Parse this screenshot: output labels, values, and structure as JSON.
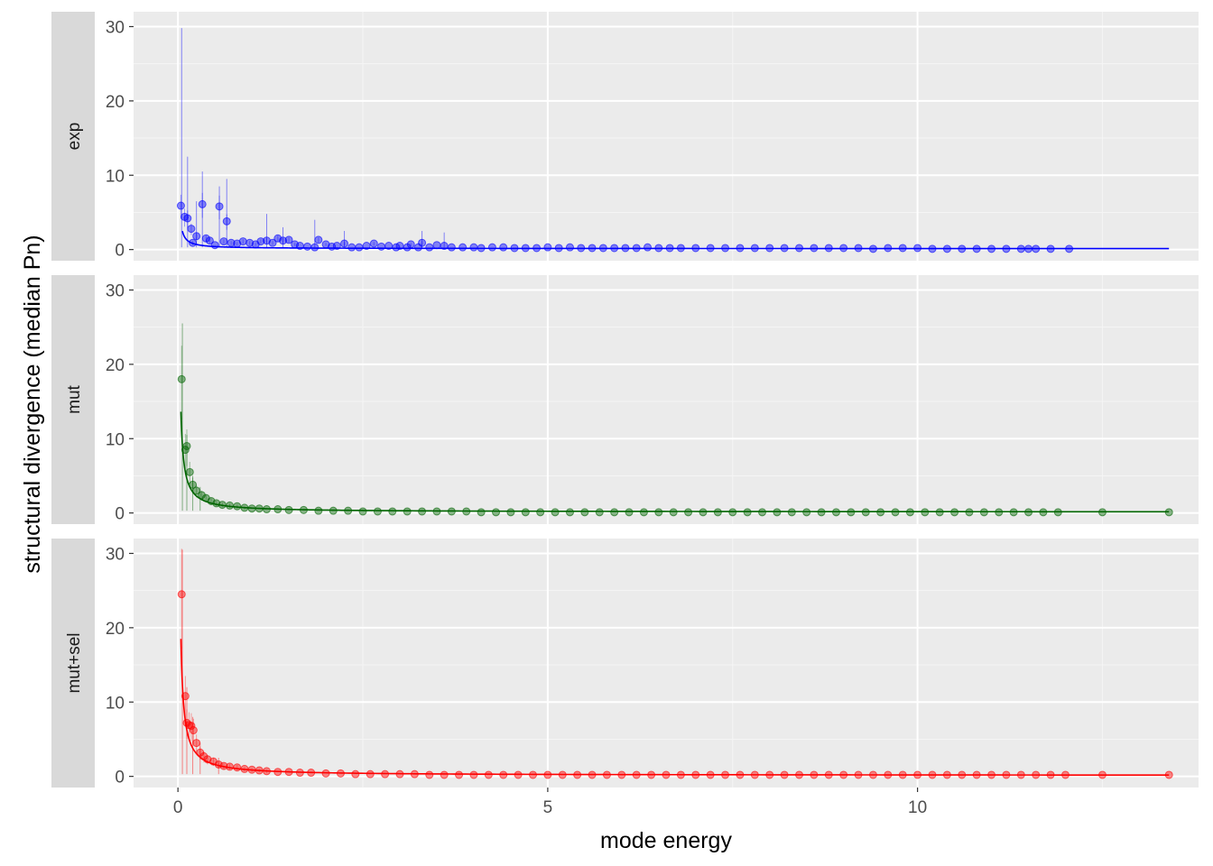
{
  "chart_data": {
    "type": "scatter",
    "xlabel": "mode energy",
    "ylabel": "structural divergence (median Pn)",
    "xlim": [
      -0.6,
      13.8
    ],
    "ylim": [
      -1.5,
      32
    ],
    "x_ticks": [
      0,
      5,
      10
    ],
    "y_ticks": [
      0,
      10,
      20,
      30
    ],
    "grid": true,
    "background": "#ebebeb",
    "strip_background": "#d9d9d9",
    "panels": [
      {
        "name": "exp",
        "color": "#0000ff",
        "points": [
          [
            0.04,
            5.9
          ],
          [
            0.09,
            4.4
          ],
          [
            0.13,
            4.2
          ],
          [
            0.18,
            2.8
          ],
          [
            0.2,
            0.9
          ],
          [
            0.25,
            1.8
          ],
          [
            0.33,
            6.1
          ],
          [
            0.38,
            1.5
          ],
          [
            0.43,
            1.2
          ],
          [
            0.5,
            0.6
          ],
          [
            0.56,
            5.8
          ],
          [
            0.62,
            1.1
          ],
          [
            0.66,
            3.8
          ],
          [
            0.72,
            0.9
          ],
          [
            0.8,
            0.8
          ],
          [
            0.88,
            1.1
          ],
          [
            0.97,
            0.9
          ],
          [
            1.05,
            0.7
          ],
          [
            1.12,
            1.1
          ],
          [
            1.2,
            1.2
          ],
          [
            1.28,
            0.9
          ],
          [
            1.35,
            1.5
          ],
          [
            1.42,
            1.2
          ],
          [
            1.5,
            1.3
          ],
          [
            1.58,
            0.7
          ],
          [
            1.65,
            0.5
          ],
          [
            1.75,
            0.4
          ],
          [
            1.85,
            0.3
          ],
          [
            1.9,
            1.3
          ],
          [
            2.0,
            0.7
          ],
          [
            2.08,
            0.4
          ],
          [
            2.15,
            0.5
          ],
          [
            2.25,
            0.8
          ],
          [
            2.35,
            0.3
          ],
          [
            2.45,
            0.3
          ],
          [
            2.55,
            0.5
          ],
          [
            2.65,
            0.8
          ],
          [
            2.75,
            0.4
          ],
          [
            2.85,
            0.5
          ],
          [
            2.95,
            0.3
          ],
          [
            3.0,
            0.5
          ],
          [
            3.1,
            0.3
          ],
          [
            3.15,
            0.7
          ],
          [
            3.25,
            0.3
          ],
          [
            3.3,
            0.9
          ],
          [
            3.4,
            0.3
          ],
          [
            3.5,
            0.6
          ],
          [
            3.6,
            0.5
          ],
          [
            3.7,
            0.3
          ],
          [
            3.85,
            0.3
          ],
          [
            4.0,
            0.3
          ],
          [
            4.1,
            0.2
          ],
          [
            4.25,
            0.3
          ],
          [
            4.4,
            0.3
          ],
          [
            4.55,
            0.2
          ],
          [
            4.7,
            0.2
          ],
          [
            4.85,
            0.2
          ],
          [
            5.0,
            0.3
          ],
          [
            5.15,
            0.2
          ],
          [
            5.3,
            0.3
          ],
          [
            5.45,
            0.2
          ],
          [
            5.6,
            0.2
          ],
          [
            5.75,
            0.2
          ],
          [
            5.9,
            0.2
          ],
          [
            6.05,
            0.2
          ],
          [
            6.2,
            0.2
          ],
          [
            6.35,
            0.3
          ],
          [
            6.5,
            0.2
          ],
          [
            6.65,
            0.2
          ],
          [
            6.8,
            0.2
          ],
          [
            7.0,
            0.2
          ],
          [
            7.2,
            0.2
          ],
          [
            7.4,
            0.2
          ],
          [
            7.6,
            0.2
          ],
          [
            7.8,
            0.2
          ],
          [
            8.0,
            0.2
          ],
          [
            8.2,
            0.2
          ],
          [
            8.4,
            0.2
          ],
          [
            8.6,
            0.2
          ],
          [
            8.8,
            0.2
          ],
          [
            9.0,
            0.2
          ],
          [
            9.2,
            0.2
          ],
          [
            9.4,
            0.1
          ],
          [
            9.6,
            0.2
          ],
          [
            9.8,
            0.2
          ],
          [
            10.0,
            0.2
          ],
          [
            10.2,
            0.1
          ],
          [
            10.4,
            0.1
          ],
          [
            10.6,
            0.1
          ],
          [
            10.8,
            0.1
          ],
          [
            11.0,
            0.1
          ],
          [
            11.2,
            0.1
          ],
          [
            11.4,
            0.1
          ],
          [
            11.5,
            0.1
          ],
          [
            11.6,
            0.1
          ],
          [
            11.8,
            0.1
          ],
          [
            12.05,
            0.1
          ]
        ],
        "error_upper": [
          [
            0.05,
            29.8
          ],
          [
            0.13,
            12.5
          ],
          [
            0.25,
            6.5
          ],
          [
            0.33,
            10.5
          ],
          [
            0.56,
            8.5
          ],
          [
            0.66,
            9.5
          ],
          [
            1.2,
            4.8
          ],
          [
            1.42,
            3.0
          ],
          [
            1.85,
            4.0
          ],
          [
            2.25,
            2.5
          ],
          [
            3.3,
            2.5
          ],
          [
            3.6,
            2.3
          ]
        ],
        "fit_curve": true,
        "fit_range": [
          0.06,
          13.4
        ]
      },
      {
        "name": "mut",
        "color": "#006400",
        "points": [
          [
            0.05,
            18.0
          ],
          [
            0.1,
            8.5
          ],
          [
            0.12,
            9.0
          ],
          [
            0.16,
            5.5
          ],
          [
            0.2,
            3.8
          ],
          [
            0.25,
            3.0
          ],
          [
            0.32,
            2.4
          ],
          [
            0.38,
            2.0
          ],
          [
            0.45,
            1.6
          ],
          [
            0.52,
            1.3
          ],
          [
            0.6,
            1.1
          ],
          [
            0.7,
            1.0
          ],
          [
            0.8,
            0.9
          ],
          [
            0.9,
            0.7
          ],
          [
            1.0,
            0.6
          ],
          [
            1.1,
            0.6
          ],
          [
            1.2,
            0.5
          ],
          [
            1.35,
            0.5
          ],
          [
            1.5,
            0.4
          ],
          [
            1.7,
            0.4
          ],
          [
            1.9,
            0.3
          ],
          [
            2.1,
            0.3
          ],
          [
            2.3,
            0.3
          ],
          [
            2.5,
            0.2
          ],
          [
            2.7,
            0.2
          ],
          [
            2.9,
            0.2
          ],
          [
            3.1,
            0.2
          ],
          [
            3.3,
            0.2
          ],
          [
            3.5,
            0.2
          ],
          [
            3.7,
            0.2
          ],
          [
            3.9,
            0.2
          ],
          [
            4.1,
            0.1
          ],
          [
            4.3,
            0.1
          ],
          [
            4.5,
            0.1
          ],
          [
            4.7,
            0.1
          ],
          [
            4.9,
            0.1
          ],
          [
            5.1,
            0.1
          ],
          [
            5.3,
            0.1
          ],
          [
            5.5,
            0.1
          ],
          [
            5.7,
            0.1
          ],
          [
            5.9,
            0.1
          ],
          [
            6.1,
            0.1
          ],
          [
            6.3,
            0.1
          ],
          [
            6.5,
            0.1
          ],
          [
            6.7,
            0.1
          ],
          [
            6.9,
            0.1
          ],
          [
            7.1,
            0.1
          ],
          [
            7.3,
            0.1
          ],
          [
            7.5,
            0.1
          ],
          [
            7.7,
            0.1
          ],
          [
            7.9,
            0.1
          ],
          [
            8.1,
            0.1
          ],
          [
            8.3,
            0.1
          ],
          [
            8.5,
            0.1
          ],
          [
            8.7,
            0.1
          ],
          [
            8.9,
            0.1
          ],
          [
            9.1,
            0.1
          ],
          [
            9.3,
            0.1
          ],
          [
            9.5,
            0.1
          ],
          [
            9.7,
            0.1
          ],
          [
            9.9,
            0.1
          ],
          [
            10.1,
            0.1
          ],
          [
            10.3,
            0.1
          ],
          [
            10.5,
            0.1
          ],
          [
            10.7,
            0.1
          ],
          [
            10.9,
            0.1
          ],
          [
            11.1,
            0.1
          ],
          [
            11.3,
            0.1
          ],
          [
            11.5,
            0.1
          ],
          [
            11.7,
            0.1
          ],
          [
            11.9,
            0.1
          ],
          [
            12.5,
            0.1
          ],
          [
            13.4,
            0.1
          ]
        ],
        "error_upper": [
          [
            0.06,
            25.5
          ],
          [
            0.12,
            10.5
          ],
          [
            0.2,
            5.0
          ],
          [
            0.3,
            3.5
          ]
        ],
        "fit_curve": true,
        "fit_range": [
          0.04,
          13.4
        ]
      },
      {
        "name": "mut+sel",
        "color": "#ff0000",
        "points": [
          [
            0.05,
            24.5
          ],
          [
            0.1,
            10.8
          ],
          [
            0.12,
            7.2
          ],
          [
            0.15,
            6.9
          ],
          [
            0.18,
            6.8
          ],
          [
            0.21,
            6.2
          ],
          [
            0.25,
            4.5
          ],
          [
            0.3,
            3.2
          ],
          [
            0.35,
            2.7
          ],
          [
            0.4,
            2.3
          ],
          [
            0.48,
            2.0
          ],
          [
            0.55,
            1.6
          ],
          [
            0.62,
            1.4
          ],
          [
            0.7,
            1.3
          ],
          [
            0.8,
            1.2
          ],
          [
            0.9,
            1.0
          ],
          [
            1.0,
            0.9
          ],
          [
            1.1,
            0.8
          ],
          [
            1.2,
            0.7
          ],
          [
            1.35,
            0.6
          ],
          [
            1.5,
            0.6
          ],
          [
            1.65,
            0.5
          ],
          [
            1.8,
            0.5
          ],
          [
            2.0,
            0.4
          ],
          [
            2.2,
            0.4
          ],
          [
            2.4,
            0.3
          ],
          [
            2.6,
            0.3
          ],
          [
            2.8,
            0.3
          ],
          [
            3.0,
            0.3
          ],
          [
            3.2,
            0.3
          ],
          [
            3.4,
            0.2
          ],
          [
            3.6,
            0.2
          ],
          [
            3.8,
            0.2
          ],
          [
            4.0,
            0.2
          ],
          [
            4.2,
            0.2
          ],
          [
            4.4,
            0.2
          ],
          [
            4.6,
            0.2
          ],
          [
            4.8,
            0.2
          ],
          [
            5.0,
            0.2
          ],
          [
            5.2,
            0.2
          ],
          [
            5.4,
            0.2
          ],
          [
            5.6,
            0.2
          ],
          [
            5.8,
            0.2
          ],
          [
            6.0,
            0.2
          ],
          [
            6.2,
            0.2
          ],
          [
            6.4,
            0.2
          ],
          [
            6.6,
            0.2
          ],
          [
            6.8,
            0.2
          ],
          [
            7.0,
            0.2
          ],
          [
            7.2,
            0.2
          ],
          [
            7.4,
            0.2
          ],
          [
            7.6,
            0.2
          ],
          [
            7.8,
            0.2
          ],
          [
            8.0,
            0.2
          ],
          [
            8.2,
            0.2
          ],
          [
            8.4,
            0.2
          ],
          [
            8.6,
            0.2
          ],
          [
            8.8,
            0.2
          ],
          [
            9.0,
            0.2
          ],
          [
            9.2,
            0.2
          ],
          [
            9.4,
            0.2
          ],
          [
            9.6,
            0.2
          ],
          [
            9.8,
            0.2
          ],
          [
            10.0,
            0.2
          ],
          [
            10.2,
            0.2
          ],
          [
            10.4,
            0.2
          ],
          [
            10.6,
            0.2
          ],
          [
            10.8,
            0.2
          ],
          [
            11.0,
            0.2
          ],
          [
            11.2,
            0.2
          ],
          [
            11.4,
            0.2
          ],
          [
            11.6,
            0.2
          ],
          [
            11.8,
            0.2
          ],
          [
            12.0,
            0.2
          ],
          [
            12.5,
            0.2
          ],
          [
            13.4,
            0.2
          ]
        ],
        "error_upper": [
          [
            0.06,
            30.5
          ],
          [
            0.12,
            12.0
          ],
          [
            0.2,
            8.0
          ],
          [
            0.3,
            4.5
          ],
          [
            0.55,
            2.5
          ]
        ],
        "fit_curve": true,
        "fit_range": [
          0.04,
          13.4
        ]
      }
    ]
  }
}
